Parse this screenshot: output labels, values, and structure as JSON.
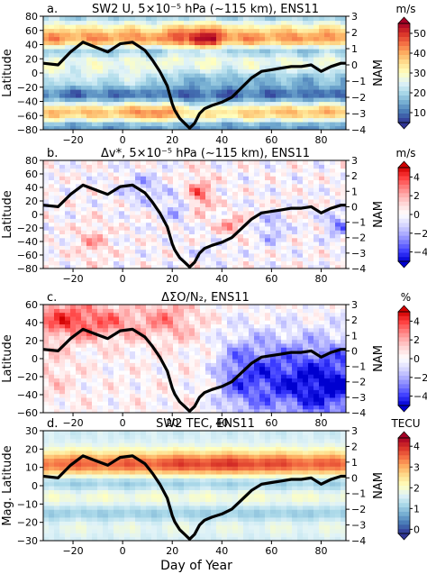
{
  "figure": {
    "xlabel": "Day of Year"
  },
  "chart_data": [
    {
      "type": "heatmap",
      "panel": "a",
      "title": "a.",
      "subtitle": "SW2 U, 5×10⁻⁵ hPa (∼115 km), ENS11",
      "ylabel": "Latitude",
      "y2label": "NAM",
      "x_ticks": [
        "−20",
        "0",
        "20",
        "40",
        "60",
        "80"
      ],
      "y_ticks": [
        "80",
        "60",
        "40",
        "20",
        "0",
        "−20",
        "−40",
        "−60",
        "−80"
      ],
      "y2_ticks": [
        "3",
        "2",
        "1",
        "0",
        "−1",
        "−2",
        "−3",
        "−4"
      ],
      "xlim": [
        -32,
        90
      ],
      "ylim": [
        -80,
        80
      ],
      "y2lim": [
        -4,
        3
      ],
      "colorbar": {
        "unit": "m/s",
        "ticks": [
          "50",
          "40",
          "30",
          "20",
          "10"
        ],
        "range": [
          5,
          55
        ],
        "scheme": "rdylbu"
      },
      "nam_curve": {
        "x": [
          -32,
          -26,
          -21,
          -16,
          -11,
          -6,
          -1,
          4,
          9,
          12,
          15,
          18,
          20,
          21,
          23,
          25,
          27,
          29,
          31,
          33,
          36,
          40,
          44,
          48,
          52,
          56,
          60,
          64,
          68,
          72,
          76,
          80,
          84,
          88,
          90
        ],
        "y": [
          0.1,
          0.0,
          0.8,
          1.4,
          1.1,
          0.8,
          1.3,
          1.4,
          0.9,
          0.3,
          -0.4,
          -1.3,
          -2.4,
          -2.8,
          -3.3,
          -3.6,
          -3.9,
          -3.6,
          -3.0,
          -2.7,
          -2.5,
          -2.3,
          -2.0,
          -1.4,
          -0.8,
          -0.4,
          -0.3,
          -0.2,
          -0.1,
          -0.1,
          0.0,
          -0.4,
          -0.1,
          0.1,
          0.1
        ]
      }
    },
    {
      "type": "heatmap",
      "panel": "b",
      "title": "b.",
      "subtitle": "Δv*, 5×10⁻⁵ hPa (∼115 km), ENS11",
      "ylabel": "Latitude",
      "y2label": "NAM",
      "x_ticks": [
        "−20",
        "0",
        "20",
        "40",
        "60",
        "80"
      ],
      "y_ticks": [
        "80",
        "60",
        "40",
        "20",
        "0",
        "−20",
        "−40",
        "−60",
        "−80"
      ],
      "y2_ticks": [
        "3",
        "2",
        "1",
        "0",
        "−1",
        "−2",
        "−3",
        "−4"
      ],
      "xlim": [
        -32,
        90
      ],
      "ylim": [
        -80,
        80
      ],
      "y2lim": [
        -4,
        3
      ],
      "colorbar": {
        "unit": "m/s",
        "ticks": [
          "4",
          "2",
          "0",
          "−2",
          "−4"
        ],
        "range": [
          -5,
          5
        ],
        "scheme": "bwr"
      },
      "nam_curve": {
        "x": [
          -32,
          -26,
          -21,
          -16,
          -11,
          -6,
          -1,
          4,
          9,
          12,
          15,
          18,
          20,
          21,
          23,
          25,
          27,
          29,
          31,
          33,
          36,
          40,
          44,
          48,
          52,
          56,
          60,
          64,
          68,
          72,
          76,
          80,
          84,
          88,
          90
        ],
        "y": [
          0.1,
          0.0,
          0.8,
          1.4,
          1.1,
          0.8,
          1.3,
          1.4,
          0.9,
          0.3,
          -0.4,
          -1.3,
          -2.4,
          -2.8,
          -3.3,
          -3.6,
          -3.9,
          -3.6,
          -3.0,
          -2.7,
          -2.5,
          -2.3,
          -2.0,
          -1.4,
          -0.8,
          -0.4,
          -0.3,
          -0.2,
          -0.1,
          -0.1,
          0.0,
          -0.4,
          -0.1,
          0.1,
          0.1
        ]
      }
    },
    {
      "type": "heatmap",
      "panel": "c",
      "title": "c.",
      "subtitle": "ΔΣO/N₂, ENS11",
      "ylabel": "Latitude",
      "y2label": "NAM",
      "x_ticks": [
        "−20",
        "0",
        "20",
        "40",
        "60",
        "80"
      ],
      "y_ticks": [
        "60",
        "40",
        "20",
        "0",
        "−20",
        "−40",
        "−60"
      ],
      "y2_ticks": [
        "3",
        "2",
        "1",
        "0",
        "−1",
        "−2",
        "−3",
        "−4"
      ],
      "xlim": [
        -32,
        90
      ],
      "ylim": [
        -60,
        60
      ],
      "y2lim": [
        -4,
        3
      ],
      "colorbar": {
        "unit": "%",
        "ticks": [
          "4",
          "2",
          "0",
          "−2",
          "−4"
        ],
        "range": [
          -5,
          5
        ],
        "scheme": "bwr"
      },
      "nam_curve": {
        "x": [
          -32,
          -26,
          -21,
          -16,
          -11,
          -6,
          -1,
          4,
          9,
          12,
          15,
          18,
          20,
          21,
          23,
          25,
          27,
          29,
          31,
          33,
          36,
          40,
          44,
          48,
          52,
          56,
          60,
          64,
          68,
          72,
          76,
          80,
          84,
          88,
          90
        ],
        "y": [
          0.1,
          0.0,
          0.8,
          1.4,
          1.1,
          0.8,
          1.3,
          1.4,
          0.9,
          0.3,
          -0.4,
          -1.3,
          -2.4,
          -2.8,
          -3.3,
          -3.6,
          -3.9,
          -3.6,
          -3.0,
          -2.7,
          -2.5,
          -2.3,
          -2.0,
          -1.4,
          -0.8,
          -0.4,
          -0.3,
          -0.2,
          -0.1,
          -0.1,
          0.0,
          -0.4,
          -0.1,
          0.1,
          0.1
        ]
      }
    },
    {
      "type": "heatmap",
      "panel": "d",
      "title": "d.",
      "subtitle": "SW2 TEC, ENS11",
      "ylabel": "Mag. Latitude",
      "y2label": "NAM",
      "x_ticks": [
        "−20",
        "0",
        "20",
        "40",
        "60",
        "80"
      ],
      "y_ticks": [
        "30",
        "20",
        "10",
        "0",
        "−10",
        "−20",
        "−30"
      ],
      "y2_ticks": [
        "3",
        "2",
        "1",
        "0",
        "−1",
        "−2",
        "−3",
        "−4"
      ],
      "xlim": [
        -32,
        90
      ],
      "ylim": [
        -30,
        30
      ],
      "y2lim": [
        -4,
        3
      ],
      "colorbar": {
        "unit": "TECU",
        "ticks": [
          "4",
          "3",
          "2",
          "1",
          "0"
        ],
        "range": [
          -0.2,
          4.4
        ],
        "scheme": "rdylbu"
      },
      "nam_curve": {
        "x": [
          -32,
          -26,
          -21,
          -16,
          -11,
          -6,
          -1,
          4,
          9,
          12,
          15,
          18,
          20,
          21,
          23,
          25,
          27,
          29,
          31,
          33,
          36,
          40,
          44,
          48,
          52,
          56,
          60,
          64,
          68,
          72,
          76,
          80,
          84,
          88,
          90
        ],
        "y": [
          0.1,
          0.0,
          0.8,
          1.4,
          1.1,
          0.8,
          1.3,
          1.4,
          0.9,
          0.3,
          -0.4,
          -1.3,
          -2.4,
          -2.8,
          -3.3,
          -3.6,
          -3.9,
          -3.6,
          -3.0,
          -2.7,
          -2.5,
          -2.3,
          -2.0,
          -1.4,
          -0.8,
          -0.4,
          -0.3,
          -0.2,
          -0.1,
          -0.1,
          0.0,
          -0.4,
          -0.1,
          0.1,
          0.1
        ]
      }
    }
  ]
}
